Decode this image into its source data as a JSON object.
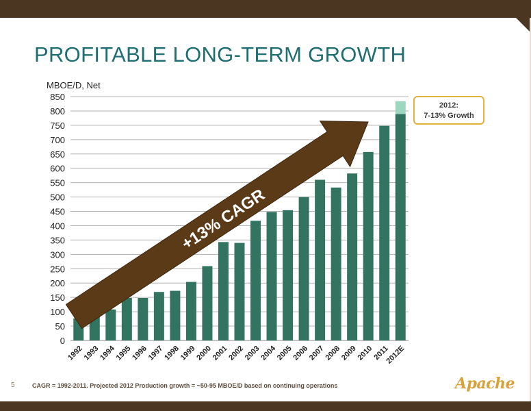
{
  "slide": {
    "title": "PROFITABLE LONG-TERM GROWTH",
    "page_number": "5",
    "footnote": "CAGR = 1992-2011. Projected 2012 Production growth = ~50-95 MBOE/D based on continuing operations",
    "logo_text": "Apache",
    "callout_line1": "2012:",
    "callout_line2": "7-13% Growth",
    "arrow_label": "+13% CAGR"
  },
  "colors": {
    "bar": "#337461",
    "projection": "#9fd6bf",
    "arrow": "#5a3a17",
    "grid": "#b0b0b0",
    "title": "#1f6e71",
    "callout_border": "#e3b13c"
  },
  "chart_data": {
    "type": "bar",
    "ylabel": "MBOE/D, Net",
    "ylim": [
      0,
      850
    ],
    "yticks": [
      0,
      50,
      100,
      150,
      200,
      250,
      300,
      350,
      400,
      450,
      500,
      550,
      600,
      650,
      700,
      750,
      800,
      850
    ],
    "categories": [
      "1992",
      "1993",
      "1994",
      "1995",
      "1996",
      "1997",
      "1998",
      "1999",
      "2000",
      "2001",
      "2002",
      "2003",
      "2004",
      "2005",
      "2006",
      "2007",
      "2008",
      "2009",
      "2010",
      "2011",
      "2012E"
    ],
    "values": [
      77,
      85,
      108,
      148,
      148,
      169,
      173,
      204,
      259,
      343,
      340,
      417,
      448,
      454,
      500,
      560,
      533,
      582,
      657,
      748,
      789
    ],
    "projection_top": 834,
    "grid": true
  }
}
